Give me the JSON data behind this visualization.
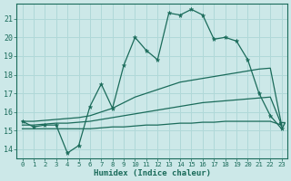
{
  "xlabel": "Humidex (Indice chaleur)",
  "ylabel": "",
  "xlim": [
    -0.5,
    23.5
  ],
  "ylim": [
    13.5,
    21.8
  ],
  "yticks": [
    14,
    15,
    16,
    17,
    18,
    19,
    20,
    21
  ],
  "xticks": [
    0,
    1,
    2,
    3,
    4,
    5,
    6,
    7,
    8,
    9,
    10,
    11,
    12,
    13,
    14,
    15,
    16,
    17,
    18,
    19,
    20,
    21,
    22,
    23
  ],
  "bg_color": "#cce8e8",
  "line_color": "#1a6b5a",
  "grid_color": "#b0d8d8",
  "series": {
    "main": [
      15.5,
      15.2,
      15.3,
      15.3,
      13.8,
      14.2,
      16.3,
      17.5,
      16.2,
      18.5,
      20.0,
      19.3,
      18.8,
      21.3,
      21.2,
      21.5,
      21.2,
      19.9,
      20.0,
      19.8,
      18.8,
      17.0,
      15.8,
      15.1
    ],
    "upper": [
      15.5,
      15.5,
      15.55,
      15.6,
      15.65,
      15.7,
      15.8,
      16.0,
      16.2,
      16.5,
      16.8,
      17.0,
      17.2,
      17.4,
      17.6,
      17.7,
      17.8,
      17.9,
      18.0,
      18.1,
      18.2,
      18.3,
      18.35,
      15.3
    ],
    "middle": [
      15.3,
      15.3,
      15.35,
      15.4,
      15.4,
      15.45,
      15.5,
      15.6,
      15.7,
      15.8,
      15.9,
      16.0,
      16.1,
      16.2,
      16.3,
      16.4,
      16.5,
      16.55,
      16.6,
      16.65,
      16.7,
      16.75,
      16.8,
      15.3
    ],
    "lower": [
      15.1,
      15.1,
      15.1,
      15.1,
      15.1,
      15.1,
      15.1,
      15.15,
      15.2,
      15.2,
      15.25,
      15.3,
      15.3,
      15.35,
      15.4,
      15.4,
      15.45,
      15.45,
      15.5,
      15.5,
      15.5,
      15.5,
      15.5,
      15.3
    ]
  },
  "marker_indices_main": [
    0,
    1,
    2,
    3,
    4,
    5,
    6,
    7,
    8,
    9,
    10,
    11,
    12,
    13,
    14,
    15,
    16,
    17,
    18,
    19,
    20,
    21,
    22,
    23
  ],
  "triangle_x": 23,
  "triangle_y": 15.3
}
